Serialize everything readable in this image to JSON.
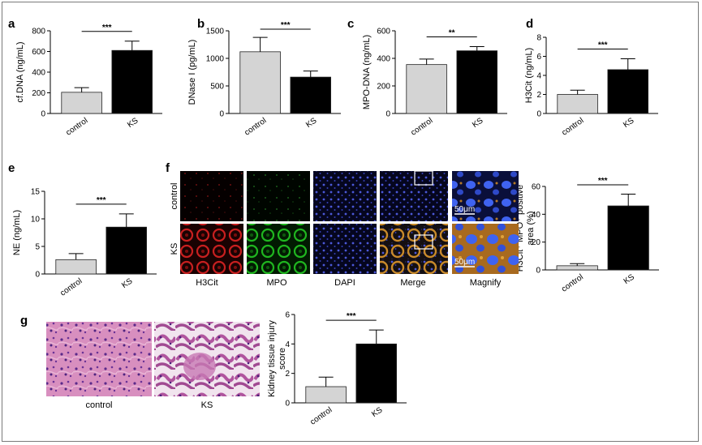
{
  "panels": {
    "a": "a",
    "b": "b",
    "c": "c",
    "d": "d",
    "e": "e",
    "f": "f",
    "g": "g"
  },
  "colors": {
    "control": "#d4d4d4",
    "ks": "#000000"
  },
  "chart_data": [
    {
      "id": "a",
      "type": "bar",
      "categories": [
        "control",
        "KS"
      ],
      "values": [
        205,
        610
      ],
      "errors": [
        45,
        90
      ],
      "ylabel": "cf.DNA (ng/mL)",
      "ylim": [
        0,
        800
      ],
      "yticks": [
        0,
        200,
        400,
        600,
        800
      ],
      "significance": "***"
    },
    {
      "id": "b",
      "type": "bar",
      "categories": [
        "control",
        "KS"
      ],
      "values": [
        1120,
        660
      ],
      "errors": [
        260,
        110
      ],
      "ylabel": "DNase I (pg/mL)",
      "ylim": [
        0,
        1500
      ],
      "yticks": [
        0,
        500,
        1000,
        1500
      ],
      "significance": "***"
    },
    {
      "id": "c",
      "type": "bar",
      "categories": [
        "control",
        "KS"
      ],
      "values": [
        355,
        455
      ],
      "errors": [
        40,
        30
      ],
      "ylabel": "MPO-DNA (ng/mL)",
      "ylim": [
        0,
        600
      ],
      "yticks": [
        0,
        200,
        400,
        600
      ],
      "significance": "**"
    },
    {
      "id": "d",
      "type": "bar",
      "categories": [
        "control",
        "KS"
      ],
      "values": [
        2.0,
        4.6
      ],
      "errors": [
        0.45,
        1.15
      ],
      "ylabel": "H3Cit (ng/mL)",
      "ylim": [
        0,
        8
      ],
      "yticks": [
        0,
        2,
        4,
        6,
        8
      ],
      "significance": "***"
    },
    {
      "id": "e",
      "type": "bar",
      "categories": [
        "control",
        "KS"
      ],
      "values": [
        2.6,
        8.5
      ],
      "errors": [
        1.1,
        2.4
      ],
      "ylabel": "NE (ng/mL)",
      "ylim": [
        0,
        15
      ],
      "yticks": [
        0,
        5,
        10,
        15
      ],
      "significance": "***"
    },
    {
      "id": "f",
      "type": "bar",
      "categories": [
        "control",
        "KS"
      ],
      "values": [
        3,
        46
      ],
      "errors": [
        1.5,
        8.5
      ],
      "ylabel": "H3Cit⁺ MPO⁺ positive area (%)",
      "ylim": [
        0,
        60
      ],
      "yticks": [
        0,
        20,
        40,
        60
      ],
      "significance": "***"
    },
    {
      "id": "g",
      "type": "bar",
      "categories": [
        "control",
        "KS"
      ],
      "values": [
        1.1,
        4.0
      ],
      "errors": [
        0.65,
        0.95
      ],
      "ylabel": "Kidney tissue injury score",
      "ylim": [
        0,
        6
      ],
      "yticks": [
        0,
        2,
        4,
        6
      ],
      "significance": "***"
    }
  ],
  "micrographs": {
    "row_labels": [
      "control",
      "KS"
    ],
    "columns": [
      "H3Cit",
      "MPO",
      "DAPI",
      "Merge",
      "Magnify"
    ],
    "scale_bar": "50μm"
  },
  "histology": {
    "labels": [
      "control",
      "KS"
    ]
  }
}
